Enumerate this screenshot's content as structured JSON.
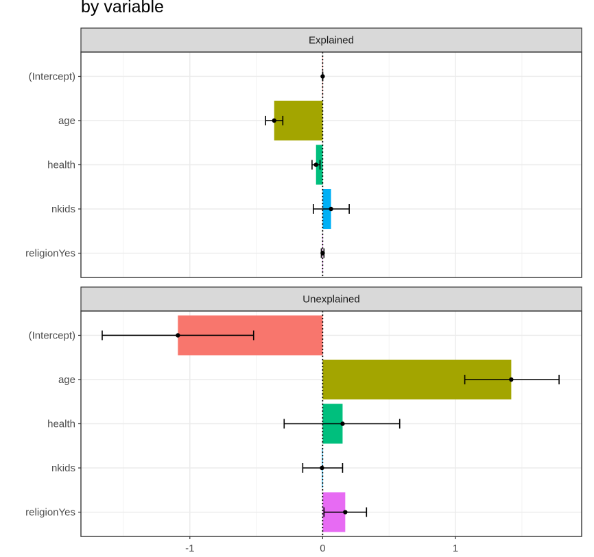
{
  "chart_data": {
    "type": "bar",
    "title": "by variable",
    "xlim": [
      -1.82,
      1.95
    ],
    "x_ticks": [
      -1,
      0,
      1
    ],
    "x_tick_labels": [
      "-1",
      "0",
      "1"
    ],
    "categories": [
      "(Intercept)",
      "age",
      "health",
      "nkids",
      "religionYes"
    ],
    "grid": true,
    "panels": [
      {
        "name": "Explained",
        "values": [
          0.0,
          -0.365,
          -0.05,
          0.063,
          0.0
        ],
        "ci_low": [
          0.0,
          -0.43,
          -0.08,
          -0.07,
          -0.01
        ],
        "ci_high": [
          0.0,
          -0.3,
          -0.02,
          0.2,
          0.01
        ]
      },
      {
        "name": "Unexplained",
        "values": [
          -1.09,
          1.42,
          0.15,
          -0.005,
          0.17
        ],
        "ci_low": [
          -1.66,
          1.07,
          -0.29,
          -0.15,
          0.01
        ],
        "ci_high": [
          -0.52,
          1.78,
          0.58,
          0.15,
          0.33
        ]
      }
    ],
    "colors": {
      "(Intercept)": "#F8766D",
      "age": "#A3A500",
      "health": "#00BF7D",
      "nkids": "#00B0F6",
      "religionYes": "#E76BF3"
    }
  }
}
